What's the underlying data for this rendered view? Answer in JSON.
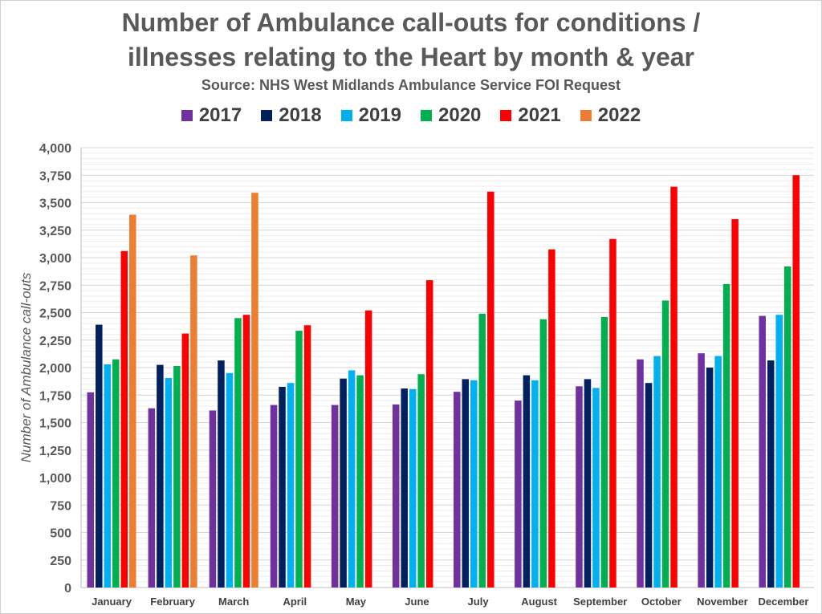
{
  "title_line1": "Number of Ambulance call-outs for conditions /",
  "title_line2": "illnesses relating to the Heart by month & year",
  "subtitle": "Source: NHS West Midlands Ambulance Service FOI Request",
  "chart_data": {
    "type": "bar",
    "title": "Number of Ambulance call-outs for conditions / illnesses relating to the Heart by month & year",
    "subtitle": "Source: NHS West Midlands Ambulance Service FOI Request",
    "xlabel": "",
    "ylabel": "Number of Ambulance call-outs",
    "ylim": [
      0,
      4000
    ],
    "yticks": [
      0,
      250,
      500,
      750,
      1000,
      1250,
      1500,
      1750,
      2000,
      2250,
      2500,
      2750,
      3000,
      3250,
      3500,
      3750,
      4000
    ],
    "ytick_labels": [
      "0",
      "250",
      "500",
      "750",
      "1,000",
      "1,250",
      "1,500",
      "1,750",
      "2,000",
      "2,250",
      "2,500",
      "2,750",
      "3,000",
      "3,250",
      "3,500",
      "3,750",
      "4,000"
    ],
    "grid": true,
    "legend_position": "top",
    "categories": [
      "January",
      "February",
      "March",
      "April",
      "May",
      "June",
      "July",
      "August",
      "September",
      "October",
      "November",
      "December"
    ],
    "series": [
      {
        "name": "2017",
        "color": "#7030A0",
        "values": [
          1775,
          1630,
          1610,
          1660,
          1660,
          1665,
          1780,
          1700,
          1830,
          2075,
          2130,
          2470
        ]
      },
      {
        "name": "2018",
        "color": "#002060",
        "values": [
          2390,
          2025,
          2065,
          1825,
          1900,
          1810,
          1895,
          1930,
          1895,
          1860,
          2000,
          2065
        ]
      },
      {
        "name": "2019",
        "color": "#00B0F0",
        "values": [
          2030,
          1905,
          1950,
          1860,
          1975,
          1805,
          1885,
          1885,
          1815,
          2105,
          2105,
          2480
        ]
      },
      {
        "name": "2020",
        "color": "#00B050",
        "values": [
          2075,
          2015,
          2450,
          2335,
          1930,
          1940,
          2490,
          2440,
          2460,
          2610,
          2760,
          2920
        ]
      },
      {
        "name": "2021",
        "color": "#FF0000",
        "values": [
          3060,
          2310,
          2480,
          2385,
          2520,
          2795,
          3600,
          3075,
          3170,
          3645,
          3350,
          3750
        ]
      },
      {
        "name": "2022",
        "color": "#ED7D31",
        "values": [
          3390,
          3020,
          3590,
          null,
          null,
          null,
          null,
          null,
          null,
          null,
          null,
          null
        ]
      }
    ]
  }
}
